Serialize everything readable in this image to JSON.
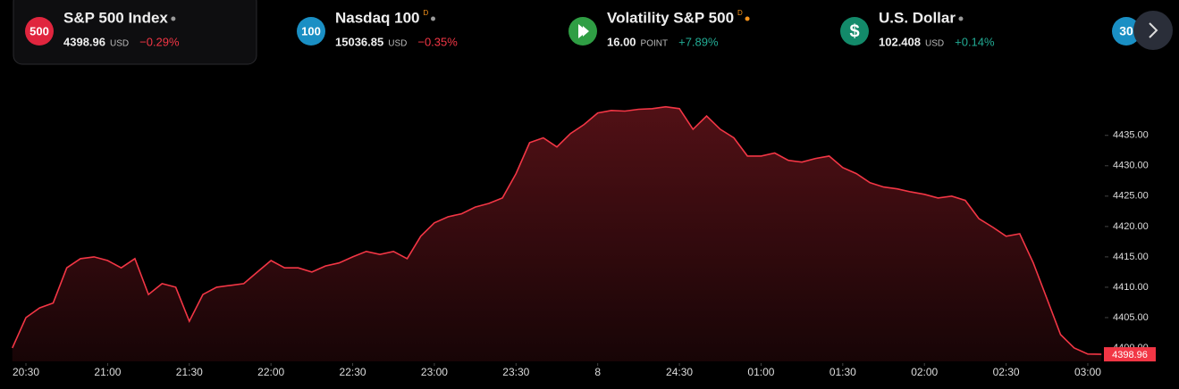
{
  "tickers": [
    {
      "icon": "500",
      "name": "S&P 500 Index",
      "price": "4398.96",
      "unit": "USD",
      "change": "−0.29%"
    },
    {
      "icon": "100",
      "name": "Nasdaq 100",
      "flag": "D",
      "price": "15036.85",
      "unit": "USD",
      "change": "−0.35%"
    },
    {
      "name": "Volatility S&P 500",
      "flag": "D",
      "price": "16.00",
      "unit": "POINT",
      "change": "+7.89%"
    },
    {
      "icon": "$",
      "name": "U.S. Dollar",
      "price": "102.408",
      "unit": "USD",
      "change": "+0.14%"
    },
    {
      "icon": "30"
    }
  ],
  "chart_data": {
    "type": "area",
    "color": "#f23645",
    "values": [
      4400,
      4405,
      4406.6,
      4407.4,
      4413.2,
      4414.7,
      4415,
      4414.4,
      4413.2,
      4414.7,
      4408.8,
      4410.6,
      4410,
      4404.4,
      4408.8,
      4410,
      4410.3,
      4410.6,
      4412.5,
      4414.4,
      4413.2,
      4413.2,
      4412.5,
      4413.5,
      4414,
      4415,
      4415.9,
      4415.4,
      4415.9,
      4414.7,
      4418.4,
      4420.6,
      4421.6,
      4422.1,
      4423.2,
      4423.8,
      4424.7,
      4428.7,
      4433.8,
      4434.6,
      4433.1,
      4435.3,
      4436.8,
      4438.7,
      4439.1,
      4439,
      4439.3,
      4439.4,
      4439.7,
      4439.4,
      4436,
      4438.2,
      4436,
      4434.6,
      4431.6,
      4431.6,
      4432.1,
      4430.9,
      4430.6,
      4431.2,
      4431.6,
      4429.7,
      4428.7,
      4427.2,
      4426.5,
      4426.2,
      4425.7,
      4425.3,
      4424.7,
      4425,
      4424.3,
      4421.3,
      4419.9,
      4418.4,
      4418.8,
      4414,
      4408.1,
      4402.2,
      4400,
      4399,
      4398.96
    ],
    "xlim": [
      0,
      80
    ],
    "xticks": [
      {
        "value": 1,
        "label": "20:30"
      },
      {
        "value": 7,
        "label": "21:00"
      },
      {
        "value": 13,
        "label": "21:30"
      },
      {
        "value": 19,
        "label": "22:00"
      },
      {
        "value": 25,
        "label": "22:30"
      },
      {
        "value": 31,
        "label": "23:00"
      },
      {
        "value": 37,
        "label": "23:30"
      },
      {
        "value": 43,
        "label": "8"
      },
      {
        "value": 49,
        "label": "24:30"
      },
      {
        "value": 55,
        "label": "01:00"
      },
      {
        "value": 61,
        "label": "01:30"
      },
      {
        "value": 67,
        "label": "02:00"
      },
      {
        "value": 73,
        "label": "02:30"
      },
      {
        "value": 79,
        "label": "03:00"
      }
    ],
    "ylim": [
      4397.8,
      4442.6
    ],
    "yticks": [
      {
        "value": 4400,
        "label": "4400.00"
      },
      {
        "value": 4405,
        "label": "4405.00"
      },
      {
        "value": 4410,
        "label": "4410.00"
      },
      {
        "value": 4415,
        "label": "4415.00"
      },
      {
        "value": 4420,
        "label": "4420.00"
      },
      {
        "value": 4425,
        "label": "4425.00"
      },
      {
        "value": 4430,
        "label": "4430.00"
      },
      {
        "value": 4435,
        "label": "4435.00"
      }
    ]
  }
}
